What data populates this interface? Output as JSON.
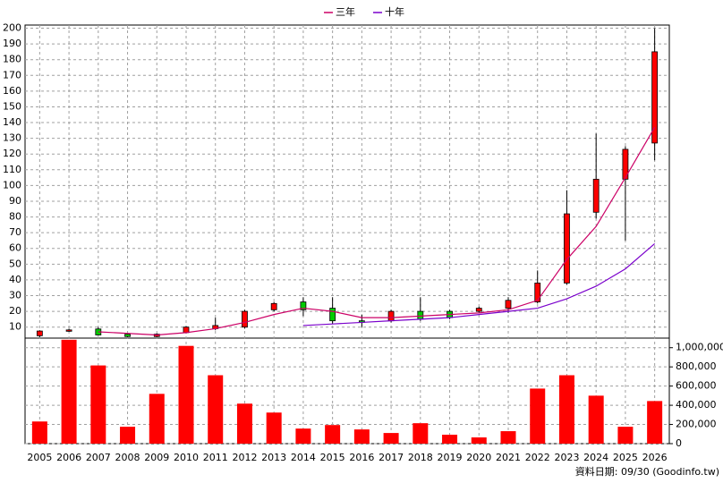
{
  "chart_data": [
    {
      "type": "candlestick",
      "categories": [
        "2005",
        "2006",
        "2007",
        "2008",
        "2009",
        "2010",
        "2011",
        "2012",
        "2013",
        "2014",
        "2015",
        "2016",
        "2017",
        "2018",
        "2019",
        "2020",
        "2021",
        "2022",
        "2023",
        "2024",
        "2025",
        "2026"
      ],
      "open": [
        4.5,
        7.5,
        8.8,
        5.5,
        4,
        6.5,
        9,
        10,
        21,
        26,
        22,
        14,
        14,
        20,
        20,
        20,
        22,
        26,
        38,
        83,
        104,
        127
      ],
      "high": [
        8,
        9,
        10,
        6,
        6,
        10.5,
        16,
        21,
        26,
        29,
        29,
        18,
        21,
        29,
        21,
        23,
        29,
        46,
        97,
        133,
        125,
        200
      ],
      "low": [
        3.5,
        7,
        4.5,
        3.5,
        3.5,
        6,
        8,
        9,
        20,
        17,
        12,
        10,
        13,
        14,
        15,
        19,
        19,
        25,
        37,
        79,
        65,
        116
      ],
      "close": [
        7.5,
        8.2,
        5,
        4,
        5.5,
        10,
        11,
        20,
        25,
        21,
        14,
        13,
        20,
        15,
        16,
        22,
        27,
        38,
        82,
        104,
        123,
        185
      ],
      "up_color": "#ff0000",
      "down_color": "#00cc00",
      "ylim": [
        3,
        202
      ],
      "yticks": [
        10,
        20,
        30,
        40,
        50,
        60,
        70,
        80,
        90,
        100,
        110,
        120,
        130,
        140,
        150,
        160,
        170,
        180,
        190,
        200
      ],
      "grid": true,
      "legend": "top",
      "series": [
        {
          "name": "三年",
          "color": "#cc0066",
          "values": [
            null,
            null,
            7,
            6,
            5,
            6.5,
            9,
            13,
            18,
            22,
            20,
            16,
            16,
            17,
            18,
            19,
            21,
            27,
            53,
            74,
            105,
            137
          ]
        },
        {
          "name": "十年",
          "color": "#7a00cc",
          "values": [
            null,
            null,
            null,
            null,
            null,
            null,
            null,
            null,
            null,
            11,
            12,
            13,
            14,
            15,
            16,
            18,
            20,
            22,
            28,
            36,
            47,
            63
          ]
        }
      ]
    },
    {
      "type": "bar",
      "color": "#ff0000",
      "values": [
        231000,
        1083000,
        815000,
        176000,
        519000,
        1019000,
        713000,
        417000,
        324000,
        157000,
        194000,
        148000,
        111000,
        213000,
        93000,
        65000,
        130000,
        574000,
        713000,
        500000,
        176000,
        444000
      ],
      "ylim": [
        0,
        1100000
      ],
      "yticks": [
        0,
        {
          "value": 200000,
          "label": "200,000"
        },
        {
          "value": 400000,
          "label": "400,000"
        },
        {
          "value": 600000,
          "label": "600,000"
        },
        {
          "value": 800000,
          "label": "800,000"
        },
        {
          "value": 1000000,
          "label": "1,000,000"
        }
      ],
      "grid": true
    }
  ],
  "source": "資料日期: 09/30 (Goodinfo.tw)"
}
